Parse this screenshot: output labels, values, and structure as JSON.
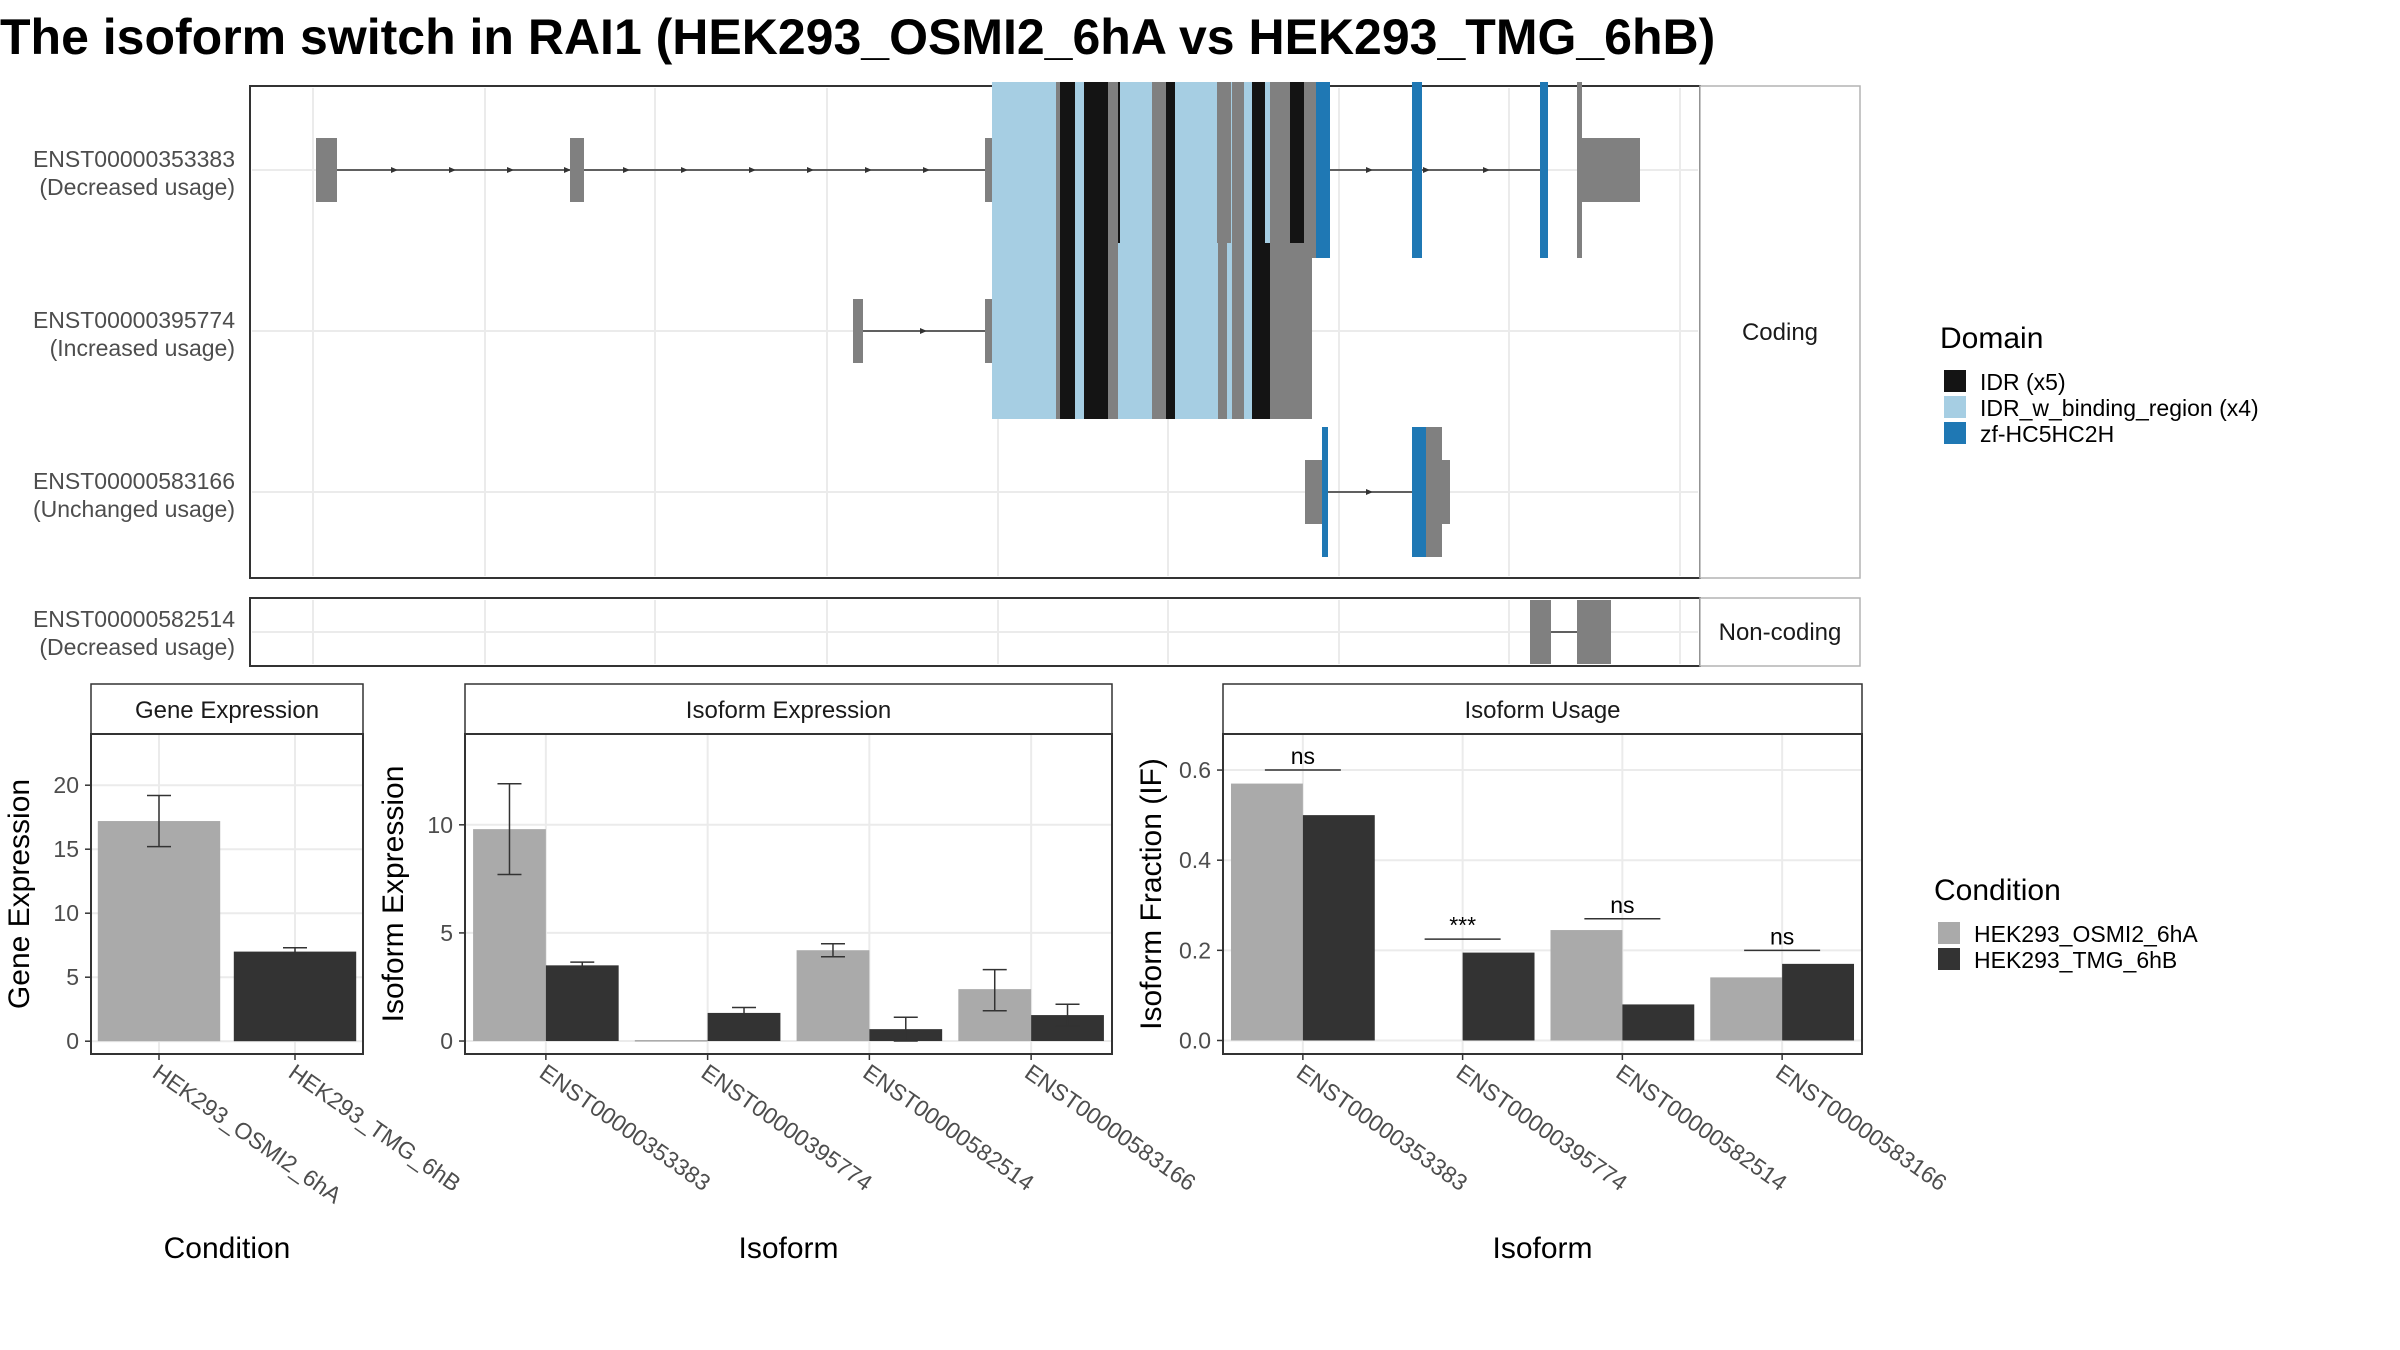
{
  "title": "The isoform switch in RAI1 (HEK293_OSMI2_6hA vs HEK293_TMG_6hB)",
  "colors": {
    "other": "#808080",
    "domains": {
      "IDR": "#141414",
      "IDR_w_binding_region": "#a6cee3",
      "zf-HC5HC2H": "#1f78b4"
    },
    "condA": "#aaaaaa",
    "condB": "#333333",
    "strip_fill": "#ffffff",
    "grid": "#ebebeb"
  },
  "structure": {
    "strips": {
      "coding": "Coding",
      "noncoding": "Non-coding"
    },
    "transcripts": [
      {
        "id": "ENST00000353383",
        "usage": "(Decreased usage)",
        "group": "coding"
      },
      {
        "id": "ENST00000395774",
        "usage": "(Increased usage)",
        "group": "coding"
      },
      {
        "id": "ENST00000583166",
        "usage": "(Unchanged usage)",
        "group": "coding"
      },
      {
        "id": "ENST00000582514",
        "usage": "(Decreased usage)",
        "group": "noncoding"
      }
    ]
  },
  "legends": {
    "domain": {
      "title": "Domain",
      "items": [
        {
          "label": "IDR (x5)",
          "color": "#141414"
        },
        {
          "label": "IDR_w_binding_region (x4)",
          "color": "#a6cee3"
        },
        {
          "label": "zf-HC5HC2H",
          "color": "#1f78b4"
        }
      ]
    },
    "condition": {
      "title": "Condition",
      "items": [
        {
          "label": "HEK293_OSMI2_6hA",
          "color": "#aaaaaa"
        },
        {
          "label": "HEK293_TMG_6hB",
          "color": "#333333"
        }
      ]
    }
  },
  "chart_data": [
    {
      "type": "bar",
      "strip": "Gene Expression",
      "xlabel": "Condition",
      "ylabel": "Gene Expression",
      "ylim": [
        -1,
        24
      ],
      "yticks": [
        0,
        5,
        10,
        15,
        20
      ],
      "categories": [
        "HEK293_OSMI2_6hA",
        "HEK293_TMG_6hB"
      ],
      "bars": [
        {
          "value": 17.2,
          "err": [
            15.2,
            19.2
          ],
          "cond": "A"
        },
        {
          "value": 7.0,
          "err": [
            6.8,
            7.3
          ],
          "cond": "B"
        }
      ]
    },
    {
      "type": "bar",
      "strip": "Isoform Expression",
      "xlabel": "Isoform",
      "ylabel": "Isoform Expression",
      "ylim": [
        -0.6,
        14.2
      ],
      "yticks": [
        0,
        5,
        10
      ],
      "categories": [
        "ENST00000353383",
        "ENST00000395774",
        "ENST00000582514",
        "ENST00000583166"
      ],
      "series": [
        {
          "name": "HEK293_OSMI2_6hA",
          "values": [
            9.8,
            0.0,
            4.2,
            2.4
          ],
          "err": [
            [
              7.7,
              11.9
            ],
            null,
            [
              3.9,
              4.5
            ],
            [
              1.4,
              3.3
            ]
          ]
        },
        {
          "name": "HEK293_TMG_6hB",
          "values": [
            3.5,
            1.3,
            0.55,
            1.2
          ],
          "err": [
            [
              3.35,
              3.65
            ],
            [
              1.1,
              1.55
            ],
            [
              0.0,
              1.1
            ],
            [
              0.7,
              1.7
            ]
          ]
        }
      ]
    },
    {
      "type": "bar",
      "strip": "Isoform Usage",
      "xlabel": "Isoform",
      "ylabel": "Isoform Fraction (IF)",
      "ylim": [
        -0.03,
        0.68
      ],
      "yticks": [
        "0.0",
        "0.2",
        "0.4",
        "0.6"
      ],
      "categories": [
        "ENST00000353383",
        "ENST00000395774",
        "ENST00000582514",
        "ENST00000583166"
      ],
      "series": [
        {
          "name": "HEK293_OSMI2_6hA",
          "values": [
            0.57,
            0.0,
            0.245,
            0.14
          ]
        },
        {
          "name": "HEK293_TMG_6hB",
          "values": [
            0.5,
            0.195,
            0.08,
            0.17
          ]
        }
      ],
      "significance": [
        {
          "label": "ns",
          "y": 0.6
        },
        {
          "label": "***",
          "y": 0.225
        },
        {
          "label": "ns",
          "y": 0.27
        },
        {
          "label": "ns",
          "y": 0.2
        }
      ]
    }
  ]
}
